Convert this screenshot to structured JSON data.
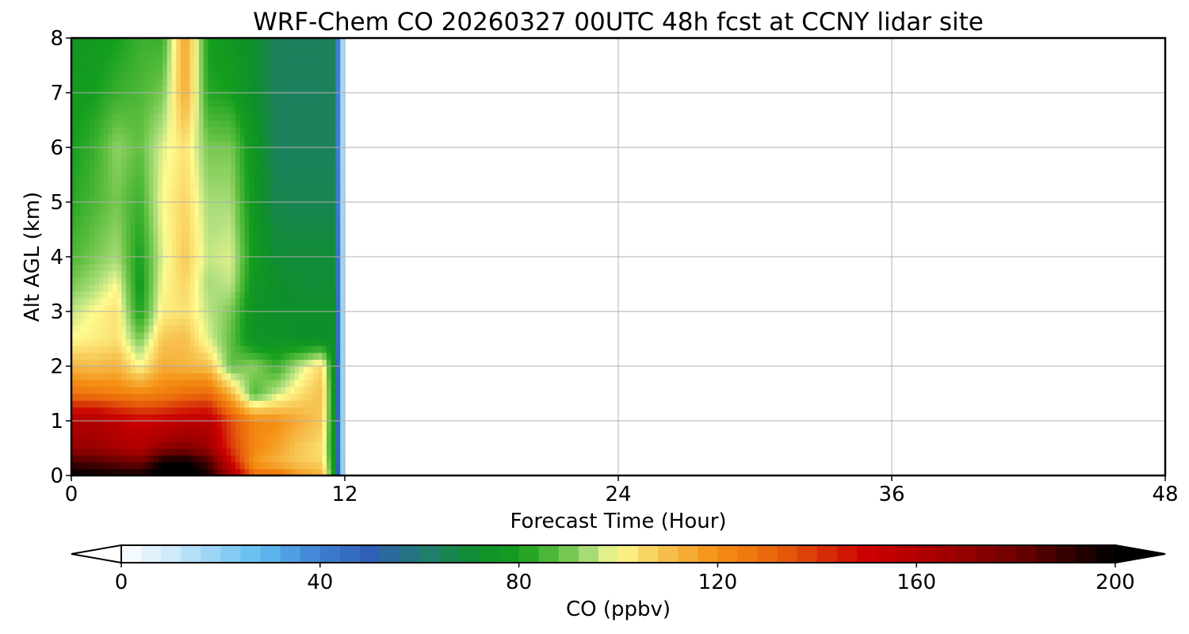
{
  "chart_data": {
    "type": "heatmap",
    "subtype": "filled-contour time-height cross-section",
    "title": "WRF-Chem CO  20260327 00UTC 48h fcst at CCNY lidar site",
    "xlabel": "Forecast Time (Hour)",
    "ylabel": "Alt AGL (km)",
    "xlim": [
      0,
      48
    ],
    "ylim": [
      0,
      8
    ],
    "x_ticks": [
      "0",
      "12",
      "24",
      "36",
      "48"
    ],
    "y_ticks": [
      "0",
      "1",
      "2",
      "3",
      "4",
      "5",
      "6",
      "7",
      "8"
    ],
    "grid": true,
    "data_extent_hours": [
      0,
      12
    ],
    "x": [
      0,
      1,
      2,
      3,
      4,
      5,
      6,
      7,
      8,
      9,
      10,
      11,
      11.5,
      12
    ],
    "y": [
      0,
      0.25,
      0.5,
      1,
      1.5,
      2,
      2.5,
      3,
      3.5,
      4,
      5,
      6,
      7,
      8
    ],
    "values": [
      [
        200,
        200,
        198,
        198,
        205,
        206,
        196,
        165,
        130,
        128,
        118,
        112,
        80,
        5
      ],
      [
        188,
        186,
        182,
        178,
        198,
        200,
        188,
        150,
        118,
        112,
        108,
        106,
        78,
        5
      ],
      [
        170,
        168,
        165,
        160,
        172,
        176,
        168,
        140,
        122,
        116,
        108,
        104,
        76,
        5
      ],
      [
        160,
        162,
        156,
        150,
        152,
        156,
        158,
        136,
        122,
        120,
        114,
        108,
        76,
        5
      ],
      [
        128,
        126,
        124,
        122,
        124,
        128,
        130,
        112,
        86,
        96,
        104,
        110,
        76,
        5
      ],
      [
        112,
        110,
        112,
        100,
        114,
        112,
        110,
        88,
        92,
        84,
        96,
        106,
        74,
        5
      ],
      [
        100,
        102,
        104,
        90,
        108,
        110,
        98,
        88,
        74,
        74,
        72,
        72,
        72,
        5
      ],
      [
        96,
        100,
        104,
        80,
        102,
        104,
        96,
        90,
        74,
        72,
        72,
        72,
        72,
        5
      ],
      [
        90,
        94,
        100,
        78,
        100,
        106,
        94,
        96,
        76,
        72,
        70,
        70,
        70,
        5
      ],
      [
        86,
        90,
        94,
        80,
        98,
        108,
        96,
        98,
        78,
        70,
        70,
        70,
        70,
        5
      ],
      [
        82,
        86,
        90,
        84,
        100,
        106,
        94,
        94,
        76,
        66,
        66,
        66,
        66,
        5
      ],
      [
        80,
        84,
        92,
        88,
        98,
        104,
        90,
        90,
        76,
        64,
        64,
        64,
        64,
        5
      ],
      [
        78,
        80,
        84,
        86,
        90,
        114,
        82,
        80,
        72,
        64,
        64,
        64,
        64,
        5
      ],
      [
        76,
        78,
        80,
        84,
        84,
        116,
        80,
        76,
        72,
        64,
        64,
        64,
        64,
        5
      ]
    ],
    "colorbar": {
      "label": "CO  (ppbv)",
      "vmin": 0,
      "vmax": 200,
      "ticks": [
        "0",
        "40",
        "80",
        "120",
        "160",
        "200"
      ],
      "extend": "both",
      "colors": [
        [
          0,
          "#ffffff"
        ],
        [
          10,
          "#cfeafb"
        ],
        [
          20,
          "#8fd0f5"
        ],
        [
          28,
          "#5fbdf0"
        ],
        [
          40,
          "#3f7fd2"
        ],
        [
          50,
          "#2f5fb6"
        ],
        [
          62,
          "#1f7f6a"
        ],
        [
          72,
          "#0f8f2a"
        ],
        [
          80,
          "#149e1e"
        ],
        [
          88,
          "#5fbf3f"
        ],
        [
          95,
          "#b3e080"
        ],
        [
          100,
          "#fffb8f"
        ],
        [
          108,
          "#f7c856"
        ],
        [
          120,
          "#f58e12"
        ],
        [
          132,
          "#e9620b"
        ],
        [
          140,
          "#d8360a"
        ],
        [
          150,
          "#cc0000"
        ],
        [
          165,
          "#a60000"
        ],
        [
          180,
          "#6e0000"
        ],
        [
          192,
          "#2c0000"
        ],
        [
          200,
          "#000000"
        ]
      ]
    }
  }
}
